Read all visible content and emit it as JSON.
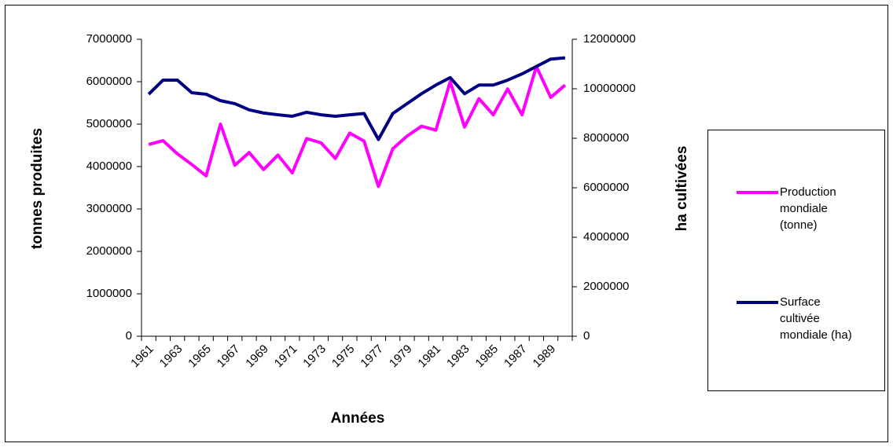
{
  "chart_data": {
    "type": "line",
    "x_label": "Années",
    "y_label": "tonnes produites",
    "y2_label": "ha cultivées",
    "categories": [
      "1961",
      null,
      "1963",
      null,
      "1965",
      null,
      "1967",
      null,
      "1969",
      null,
      "1971",
      null,
      "1973",
      null,
      "1975",
      null,
      "1977",
      null,
      "1979",
      null,
      "1981",
      null,
      "1983",
      null,
      "1985",
      null,
      "1987",
      null,
      "1989",
      null
    ],
    "series": [
      {
        "name": "Production mondiale (tonne)",
        "color": "#ff00ff",
        "values": [
          4520000,
          4610000,
          4300000,
          4050000,
          3780000,
          5000000,
          4030000,
          4330000,
          3930000,
          4270000,
          3850000,
          4660000,
          4560000,
          4190000,
          4790000,
          4600000,
          3530000,
          4420000,
          4720000,
          4950000,
          4860000,
          6000000,
          4930000,
          5600000,
          5220000,
          5830000,
          5220000,
          6360000,
          5630000,
          5920000
        ]
      },
      {
        "name": "Surface cultivée mondiale (ha)",
        "color": "#000080",
        "axis": "y2",
        "values": [
          9780000,
          10350000,
          10350000,
          9840000,
          9780000,
          9520000,
          9400000,
          9150000,
          9020000,
          8950000,
          8890000,
          9050000,
          8950000,
          8890000,
          8950000,
          9000000,
          7950000,
          9000000,
          9400000,
          9800000,
          10150000,
          10450000,
          9800000,
          10150000,
          10150000,
          10350000,
          10600000,
          10900000,
          11200000,
          11250000
        ]
      }
    ],
    "ylim": [
      0,
      7000000
    ],
    "yticks": [
      0,
      1000000,
      2000000,
      3000000,
      4000000,
      5000000,
      6000000,
      7000000
    ],
    "y2lim": [
      0,
      12000000
    ],
    "y2ticks": [
      0,
      2000000,
      4000000,
      6000000,
      8000000,
      10000000,
      12000000
    ],
    "legend": "right"
  }
}
